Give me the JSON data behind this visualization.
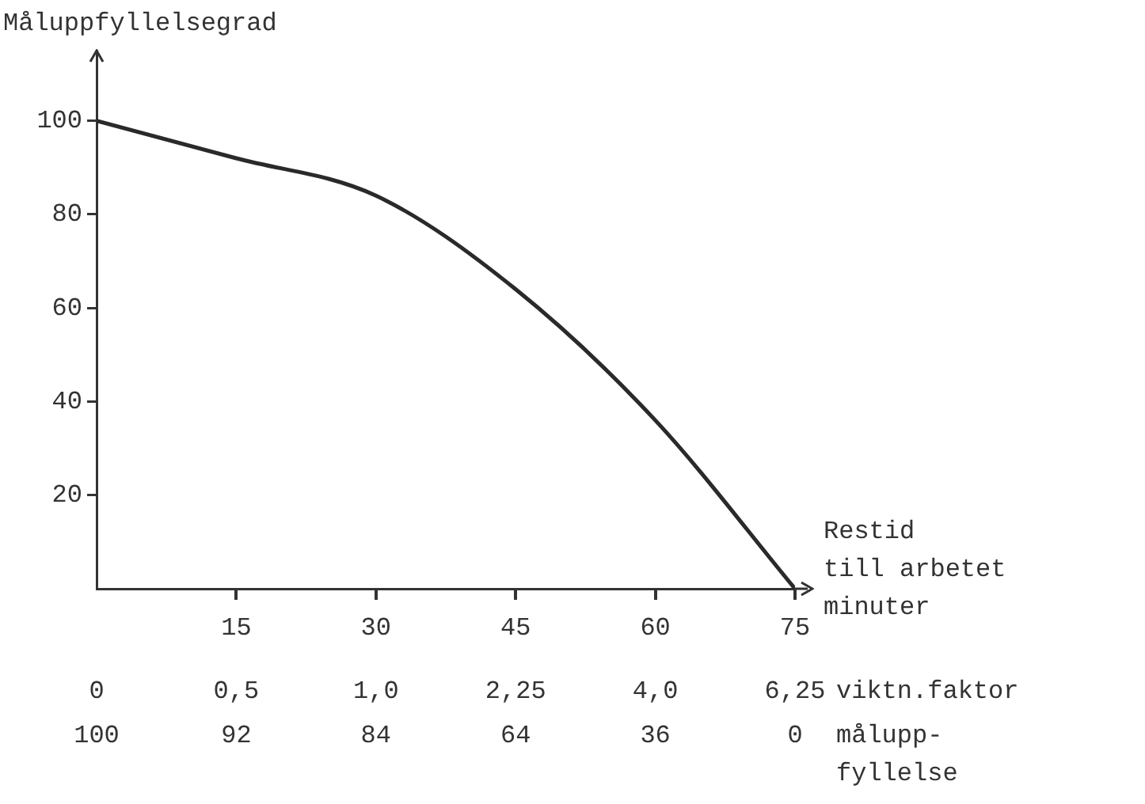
{
  "chart_data": {
    "type": "line",
    "ylabel": "Måluppfyllelsegrad",
    "xlabel": "Restid\ntill arbetet\nminuter",
    "x": [
      0,
      15,
      30,
      45,
      60,
      75
    ],
    "series": [
      {
        "color": "#2a2a2a",
        "values": [
          100,
          92,
          84,
          64,
          36,
          0
        ]
      }
    ],
    "marker": "none",
    "grid": false,
    "xlim": [
      0,
      75
    ],
    "xticks": [
      15,
      30,
      45,
      60,
      75
    ],
    "ylim": [
      0,
      115
    ],
    "yticks": [
      20,
      40,
      60,
      80,
      100
    ],
    "annotations": [
      "0",
      "0,5",
      "1,0",
      "2,25",
      "4,0",
      "6,25",
      "viktn.faktor",
      "100",
      "92",
      "84",
      "64",
      "36",
      "0",
      "målupp-\nfyllelse"
    ]
  }
}
